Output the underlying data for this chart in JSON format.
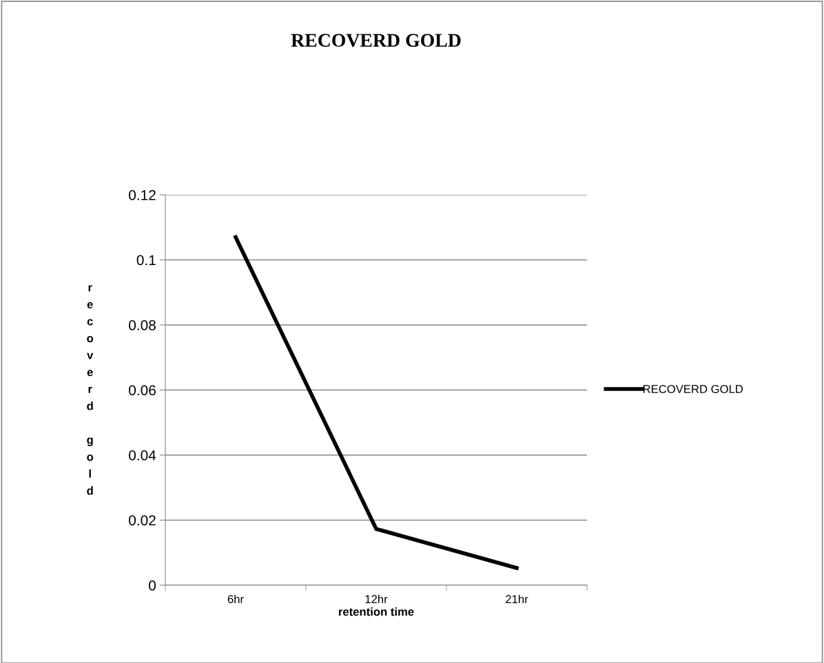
{
  "chart_data": {
    "type": "line",
    "title": "RECOVERD GOLD",
    "xlabel": "retention time",
    "ylabel": "recoverd gold",
    "categories": [
      "6hr",
      "12hr",
      "21hr"
    ],
    "series": [
      {
        "name": "RECOVERD GOLD",
        "color": "#000000",
        "values": [
          0.107,
          0.0173,
          0.0053
        ]
      }
    ],
    "ylim": [
      0,
      0.12
    ],
    "yticks": [
      0,
      0.02,
      0.04,
      0.06,
      0.08,
      0.1,
      0.12
    ],
    "grid": "y",
    "legend": "right",
    "marker": "none",
    "line_style": "solid"
  }
}
